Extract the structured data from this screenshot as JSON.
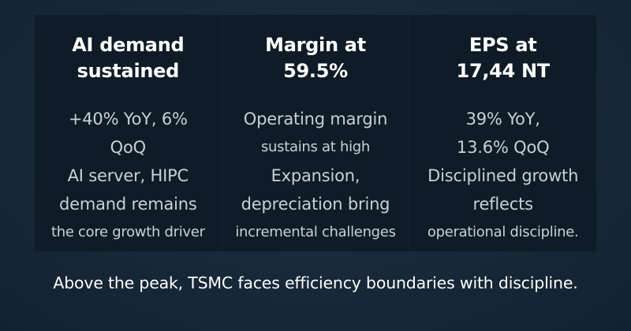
{
  "columns": [
    {
      "heading": [
        "AI demand",
        "sustained"
      ],
      "lines": [
        "+40% YoY, 6%",
        "QoQ",
        "AI server, HIPC",
        "demand remains",
        "the core growth driver"
      ]
    },
    {
      "heading": [
        "Margin at",
        "59.5%"
      ],
      "lines": [
        "Operating margin",
        "sustains at high",
        "Expansion,",
        "depreciation bring",
        "incremental challenges"
      ]
    },
    {
      "heading": [
        "EPS at",
        "17,44 NT"
      ],
      "lines": [
        "39% YoY,",
        "13.6% QoQ",
        "Disciplined growth",
        "reflects",
        "operational discipline."
      ]
    }
  ],
  "caption": "Above the peak, TSMC faces efficiency boundaries with discipline."
}
